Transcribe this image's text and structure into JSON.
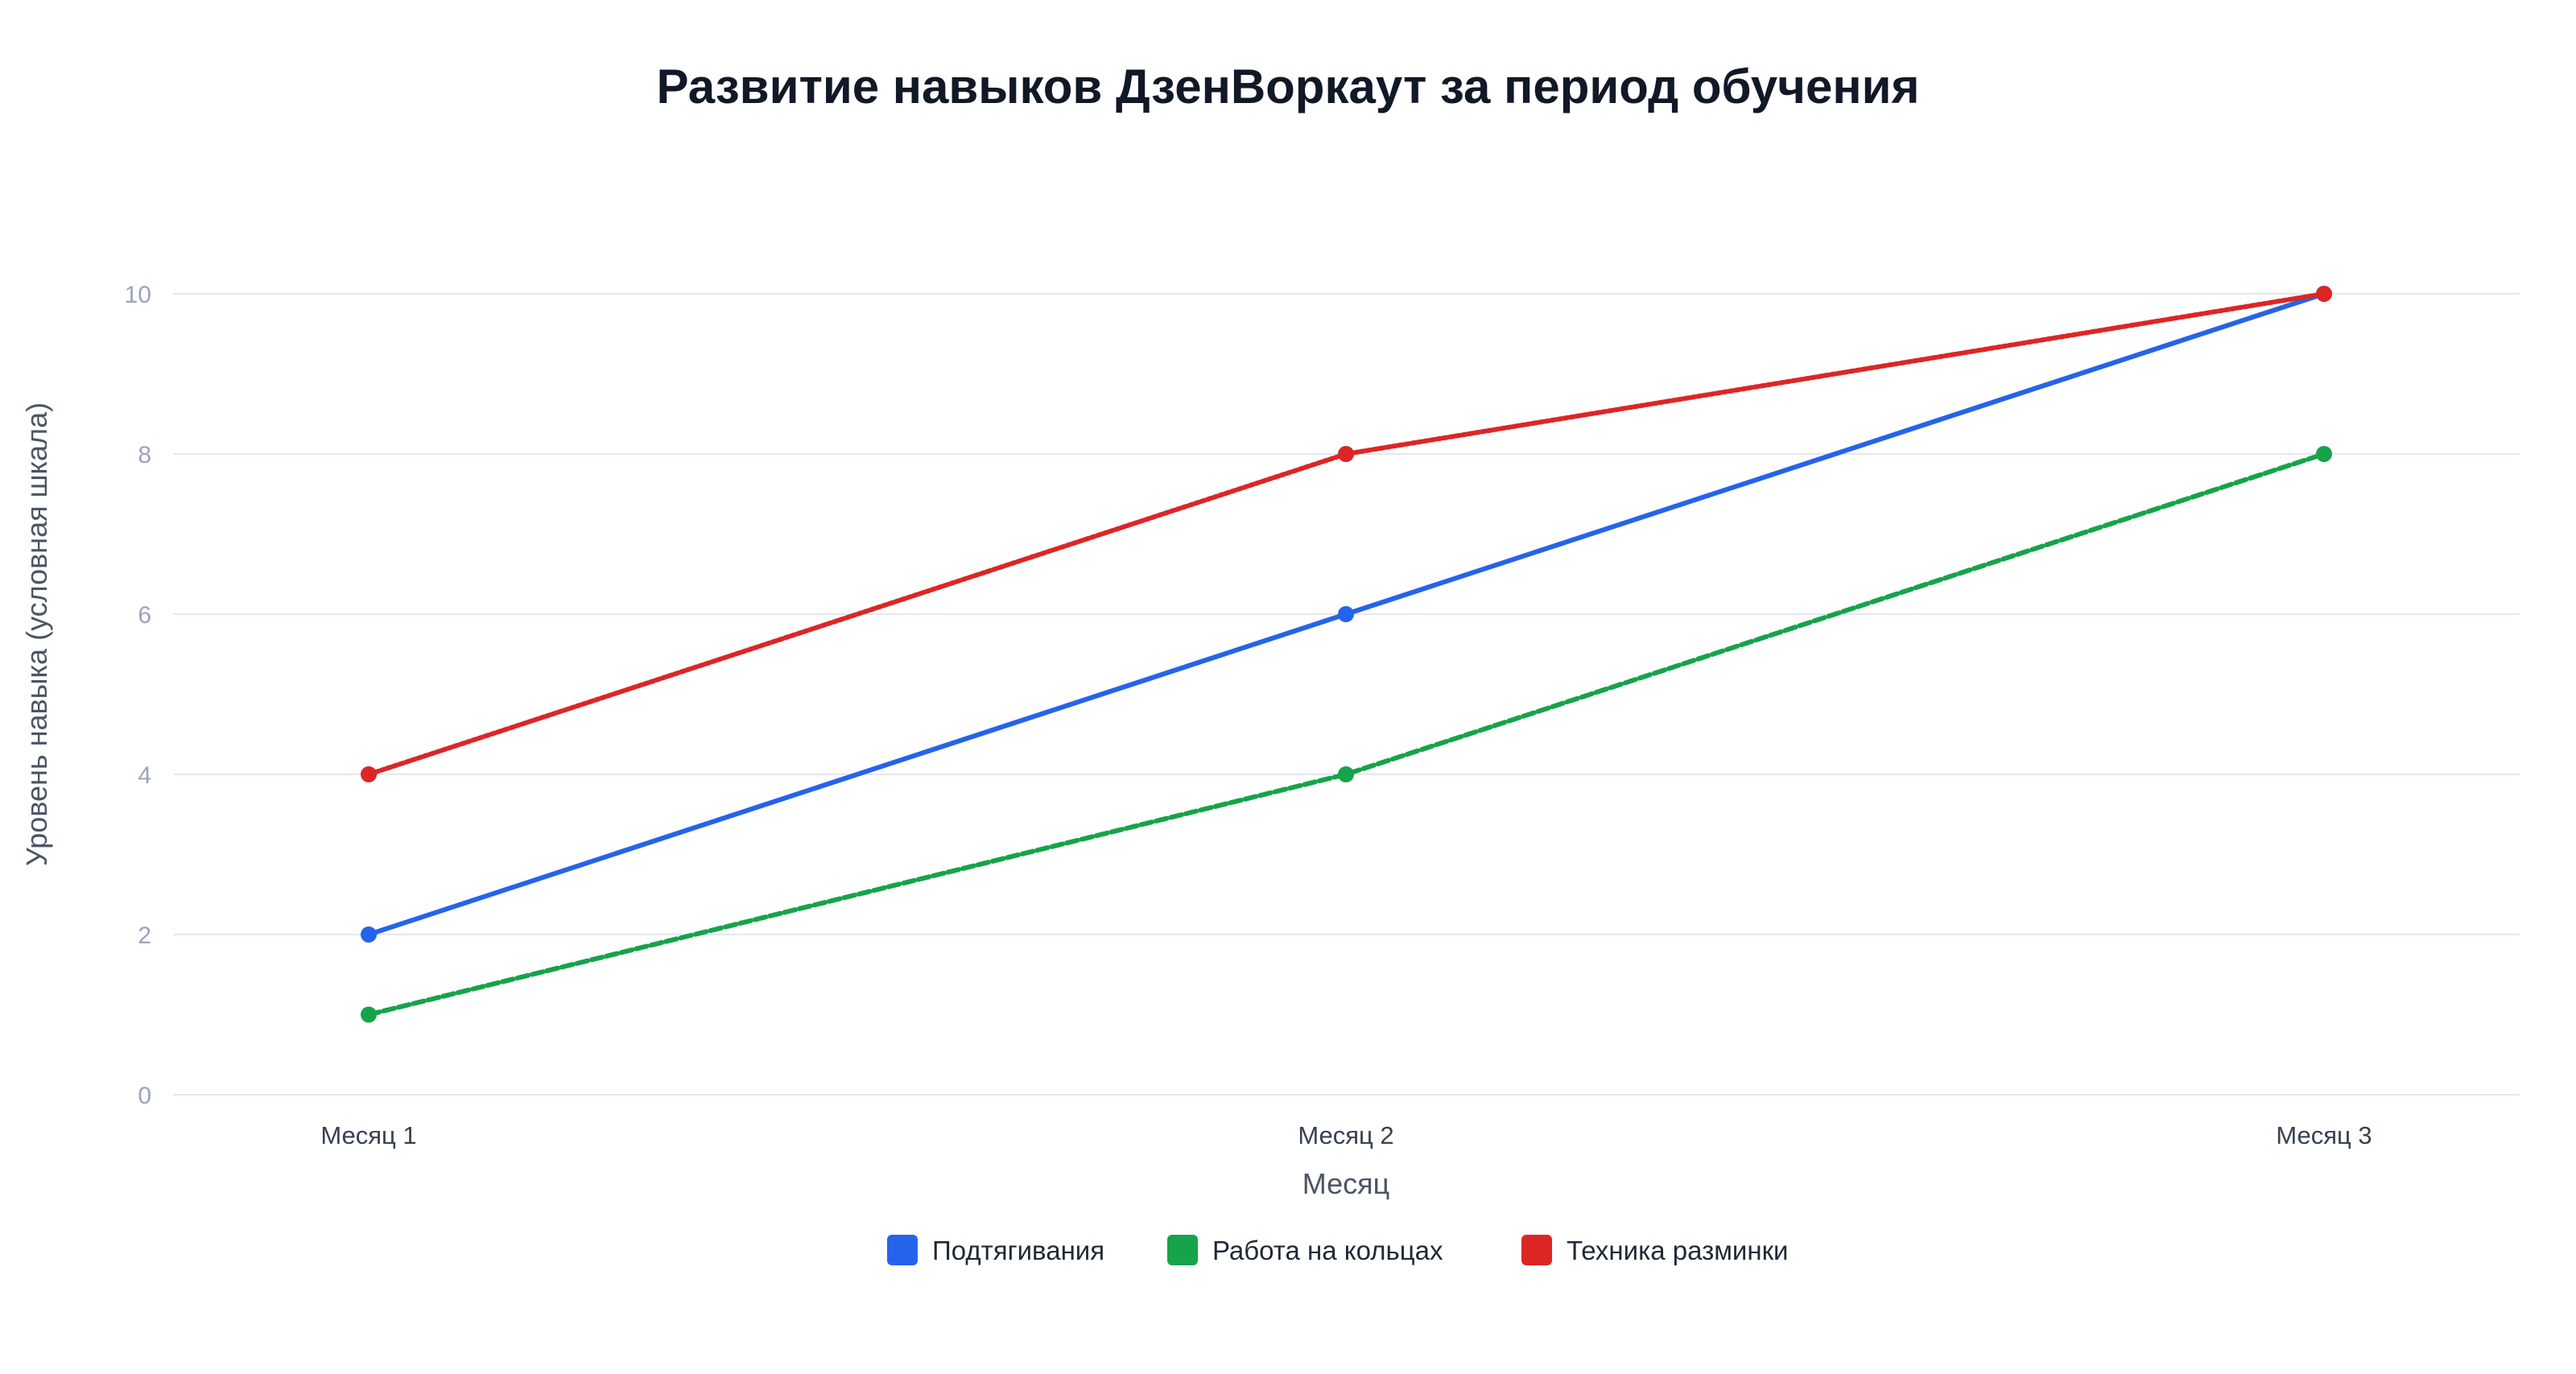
{
  "chart_data": {
    "type": "line",
    "title": "Развитие навыков ДзенВоркаут за период обучения",
    "xlabel": "Месяц",
    "ylabel": "Уровень навыка (условная шкала)",
    "categories": [
      "Месяц 1",
      "Месяц 2",
      "Месяц 3"
    ],
    "ylim": [
      0,
      10
    ],
    "yticks": [
      0,
      2,
      4,
      6,
      8,
      10
    ],
    "grid": true,
    "legend_position": "bottom-center",
    "series": [
      {
        "name": "Подтягивания",
        "values": [
          2,
          6,
          10
        ],
        "color": "#2563eb",
        "line_style": "solid"
      },
      {
        "name": "Работа на кольцах",
        "values": [
          1,
          4,
          8
        ],
        "color": "#16a34a",
        "line_style": "dashed"
      },
      {
        "name": "Техника разминки",
        "values": [
          4,
          8,
          10
        ],
        "color": "#dc2626",
        "line_style": "dotted"
      }
    ]
  }
}
